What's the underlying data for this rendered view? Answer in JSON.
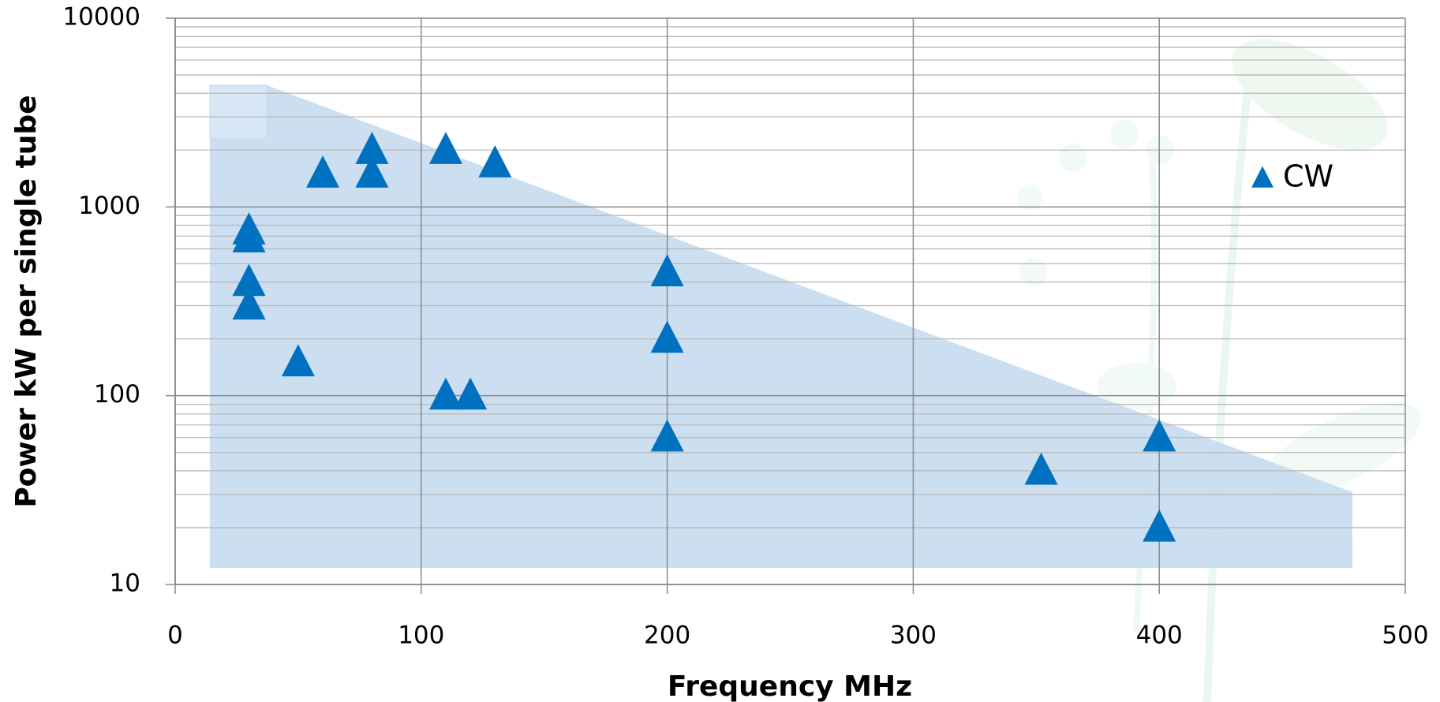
{
  "chart_data": {
    "type": "scatter",
    "x_label": "Frequency MHz",
    "y_label": "Power kW per single tube",
    "xlim": [
      0,
      500
    ],
    "xticks": [
      0,
      100,
      200,
      300,
      400,
      500
    ],
    "ylim": [
      10,
      10000
    ],
    "yticks": [
      10,
      100,
      1000,
      10000
    ],
    "log_y": true,
    "grid": true,
    "minor_grid": true,
    "legend": "right",
    "series": [
      {
        "name": "CW",
        "color": "#0070c0",
        "x": [
          30,
          30,
          30,
          30,
          50,
          60,
          80,
          80,
          110,
          130,
          110,
          120,
          200,
          200,
          200,
          352,
          400,
          400
        ],
        "values": [
          750,
          680,
          400,
          300,
          150,
          1500,
          2000,
          1500,
          2000,
          1700,
          100,
          100,
          450,
          200,
          60,
          40,
          60,
          20
        ]
      }
    ]
  }
}
